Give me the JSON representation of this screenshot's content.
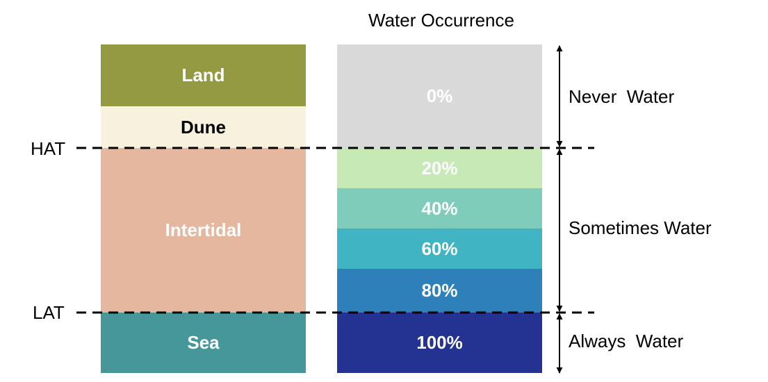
{
  "title": "Water Occurrence",
  "left_column": [
    {
      "label": "Land",
      "color": "#949a42",
      "text_color": "#ffffff"
    },
    {
      "label": "Dune",
      "color": "#f7f1dd",
      "text_color": "#000000"
    },
    {
      "label": "Intertidal",
      "color": "#e5b79e",
      "text_color": "#ffffff"
    },
    {
      "label": "Sea",
      "color": "#46979a",
      "text_color": "#ffffff"
    }
  ],
  "right_column": [
    {
      "label": "0%",
      "color": "#d9d9d9"
    },
    {
      "label": "20%",
      "color": "#c6e9b6"
    },
    {
      "label": "40%",
      "color": "#80ccbb"
    },
    {
      "label": "60%",
      "color": "#41b4c4"
    },
    {
      "label": "80%",
      "color": "#2d80b9"
    },
    {
      "label": "100%",
      "color": "#243391"
    }
  ],
  "tide_lines": {
    "hat": "HAT",
    "lat": "LAT"
  },
  "categories": {
    "never": "Never  Water",
    "sometimes": "Sometimes Water",
    "always": "Always  Water"
  }
}
